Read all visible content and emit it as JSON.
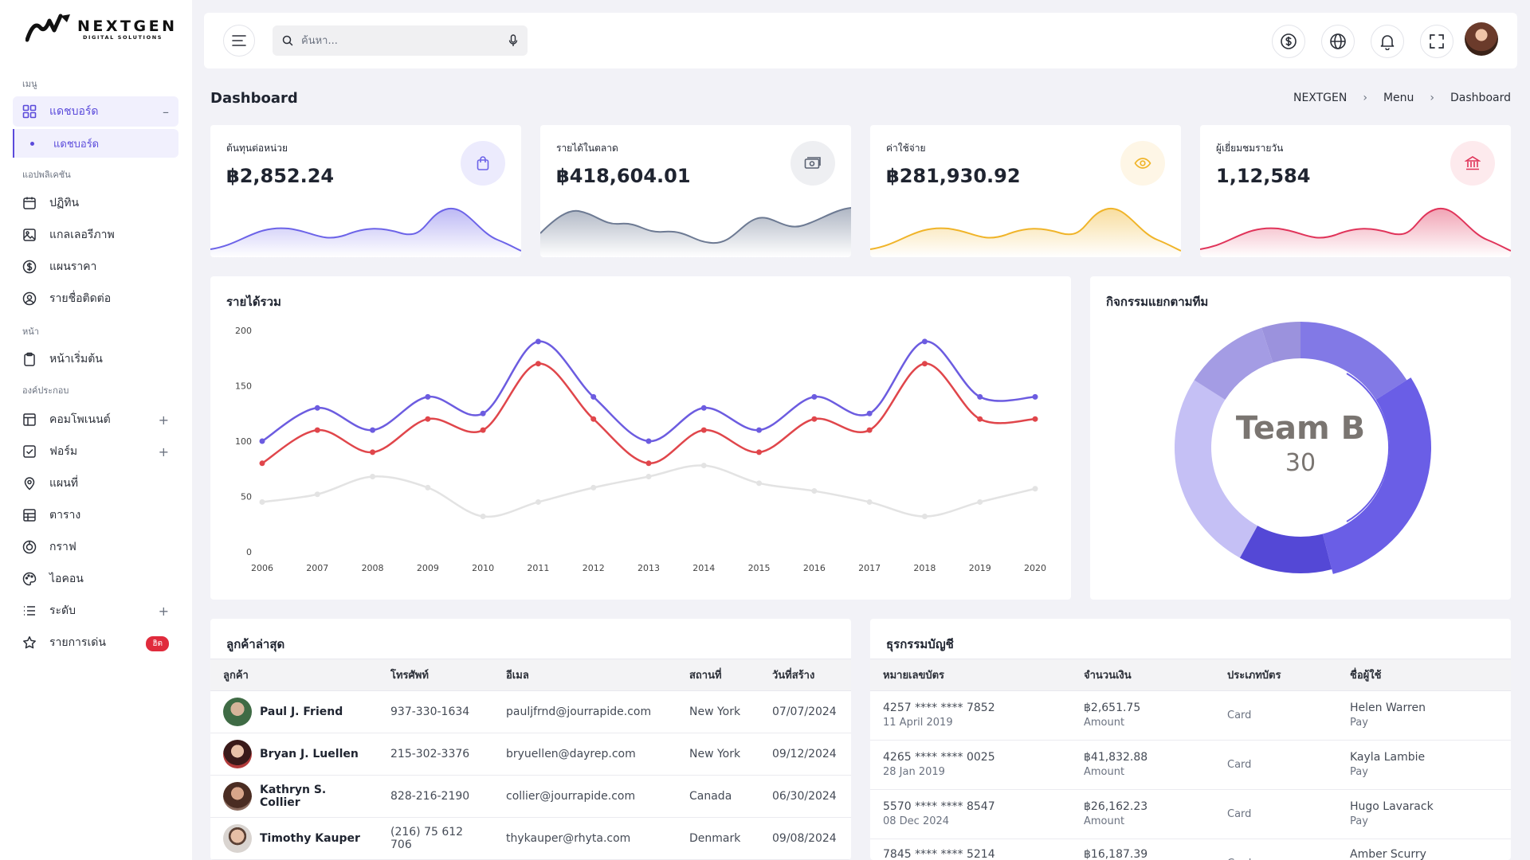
{
  "brand": {
    "name": "NEXTGEN",
    "tagline": "DIGITAL SOLUTIONS"
  },
  "sidebar": {
    "sections": [
      "เมนู",
      "แอปพลิเคชัน",
      "หน้า",
      "องค์ประกอบ"
    ],
    "dashboard": {
      "label": "แดชบอร์ด",
      "trail": "–"
    },
    "dashboard_sub": "แดชบอร์ด",
    "apps": [
      {
        "label": "ปฏิทิน",
        "icon": "calendar-icon"
      },
      {
        "label": "แกลเลอรีภาพ",
        "icon": "image-icon"
      },
      {
        "label": "แผนราคา",
        "icon": "dollar-icon"
      },
      {
        "label": "รายชื่อติดต่อ",
        "icon": "user-circle-icon"
      }
    ],
    "pages": [
      {
        "label": "หน้าเริ่มต้น",
        "icon": "clipboard-icon"
      }
    ],
    "components": [
      {
        "label": "คอมโพเนนต์",
        "icon": "layout-icon",
        "trail": "+"
      },
      {
        "label": "ฟอร์ม",
        "icon": "checkbox-icon",
        "trail": "+"
      },
      {
        "label": "แผนที่",
        "icon": "map-pin-icon"
      },
      {
        "label": "ตาราง",
        "icon": "table-icon"
      },
      {
        "label": "กราฟ",
        "icon": "chart-icon"
      },
      {
        "label": "ไอคอน",
        "icon": "palette-icon"
      },
      {
        "label": "ระดับ",
        "icon": "list-icon",
        "trail": "+"
      },
      {
        "label": "รายการเด่น",
        "icon": "star-icon",
        "badge": "ฮิต"
      }
    ]
  },
  "topbar": {
    "search_placeholder": "ค้นหา...",
    "icons": [
      "currency-icon",
      "globe-icon",
      "bell-icon",
      "fullscreen-icon"
    ]
  },
  "page": {
    "title": "Dashboard",
    "breadcrumb": [
      "NEXTGEN",
      "Menu",
      "Dashboard"
    ]
  },
  "stats": [
    {
      "label": "ต้นทุนต่อหน่วย",
      "value": "฿2,852.24",
      "color": "#6c63e8",
      "chip_bg": "#ecebfd",
      "icon": "shopping-bag-icon"
    },
    {
      "label": "รายได้ในตลาด",
      "value": "฿418,604.01",
      "color": "#6d7a93",
      "chip_bg": "#eeeff2",
      "icon": "money-icon"
    },
    {
      "label": "ค่าใช้จ่าย",
      "value": "฿281,930.92",
      "color": "#f0b429",
      "chip_bg": "#fef6e6",
      "icon": "eye-icon"
    },
    {
      "label": "ผู้เยี่ยมชมรายวัน",
      "value": "1,12,584",
      "color": "#e0345a",
      "chip_bg": "#fdeaed",
      "icon": "bank-icon"
    }
  ],
  "revenue": {
    "title": "รายได้รวม",
    "chart_data": {
      "type": "line",
      "x": [
        "2006",
        "2007",
        "2008",
        "2009",
        "2010",
        "2011",
        "2012",
        "2013",
        "2014",
        "2015",
        "2016",
        "2017",
        "2018",
        "2019",
        "2020"
      ],
      "ylim": [
        0,
        200
      ],
      "yticks": [
        "0",
        "50",
        "100",
        "150",
        "200"
      ],
      "series": [
        {
          "color": "#6c5ce0",
          "values": [
            100,
            130,
            110,
            140,
            125,
            190,
            140,
            100,
            130,
            110,
            140,
            125,
            190,
            140,
            140
          ]
        },
        {
          "color": "#e0464b",
          "values": [
            80,
            110,
            90,
            120,
            110,
            170,
            120,
            80,
            110,
            90,
            120,
            110,
            170,
            120,
            120
          ]
        },
        {
          "color": "#e3e3e3",
          "values": [
            45,
            52,
            68,
            58,
            32,
            45,
            58,
            68,
            78,
            62,
            55,
            45,
            32,
            45,
            57
          ]
        }
      ]
    }
  },
  "team": {
    "title": "กิจกรรมแยกตามทีม",
    "center_label": "Team B",
    "center_value": "30",
    "chart_data": {
      "type": "pie",
      "values": [
        16,
        30,
        12,
        26,
        11,
        5
      ],
      "colors": [
        "#8279e6",
        "#6a5ee6",
        "#5448d6",
        "#c5c0f5",
        "#a49ce4",
        "#9b92dd"
      ]
    }
  },
  "customers": {
    "title": "ลูกค้าล่าสุด",
    "columns": [
      "ลูกค้า",
      "โทรศัพท์",
      "อีเมล",
      "สถานที่",
      "วันที่สร้าง"
    ],
    "rows": [
      {
        "name": "Paul J. Friend",
        "phone": "937-330-1634",
        "email": "pauljfrnd@jourrapide.com",
        "location": "New York",
        "date": "07/07/2024",
        "avatar": "#3f6b45"
      },
      {
        "name": "Bryan J. Luellen",
        "phone": "215-302-3376",
        "email": "bryuellen@dayrep.com",
        "location": "New York",
        "date": "09/12/2024",
        "avatar": "#7a2a2a"
      },
      {
        "name": "Kathryn S. Collier",
        "phone": "828-216-2190",
        "email": "collier@jourrapide.com",
        "location": "Canada",
        "date": "06/30/2024",
        "avatar": "#5a3a2e"
      },
      {
        "name": "Timothy Kauper",
        "phone": "(216) 75 612 706",
        "email": "thykauper@rhyta.com",
        "location": "Denmark",
        "date": "09/08/2024",
        "avatar": "#8a6b5a"
      }
    ]
  },
  "transactions": {
    "title": "ธุรกรรมบัญชี",
    "columns": [
      "หมายเลขบัตร",
      "จำนวนเงิน",
      "ประเภทบัตร",
      "ชื่อผู้ใช้"
    ],
    "rows": [
      {
        "card": "4257 **** **** 7852",
        "date": "11 April 2019",
        "amount": "฿2,651.75",
        "amount_sub": "Amount",
        "type": "Card",
        "user": "Helen Warren",
        "user_sub": "Pay"
      },
      {
        "card": "4265 **** **** 0025",
        "date": "28 Jan 2019",
        "amount": "฿41,832.88",
        "amount_sub": "Amount",
        "type": "Card",
        "user": "Kayla Lambie",
        "user_sub": "Pay"
      },
      {
        "card": "5570 **** **** 8547",
        "date": "08 Dec 2024",
        "amount": "฿26,162.23",
        "amount_sub": "Amount",
        "type": "Card",
        "user": "Hugo Lavarack",
        "user_sub": "Pay"
      },
      {
        "card": "7845 **** **** 5214",
        "date": "",
        "amount": "฿16,187.39",
        "amount_sub": "",
        "type": "Card",
        "user": "Amber Scurry",
        "user_sub": ""
      }
    ]
  }
}
